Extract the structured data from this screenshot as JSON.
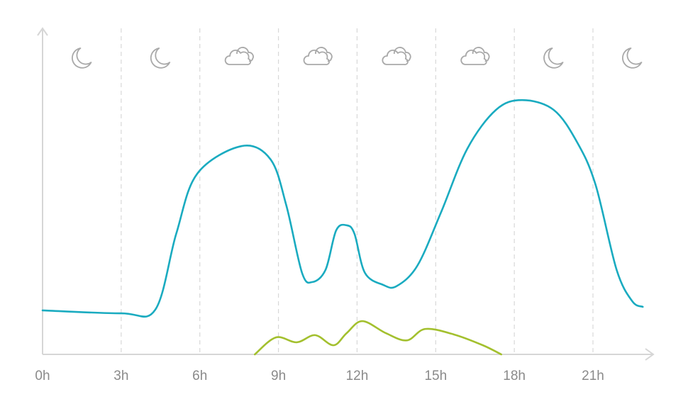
{
  "chart_data": {
    "type": "line",
    "xlim": [
      0,
      23.3
    ],
    "ylim": [
      0,
      100
    ],
    "xticks": [
      {
        "value": 0,
        "label": "0h"
      },
      {
        "value": 3,
        "label": "3h"
      },
      {
        "value": 6,
        "label": "6h"
      },
      {
        "value": 9,
        "label": "9h"
      },
      {
        "value": 12,
        "label": "12h"
      },
      {
        "value": 15,
        "label": "15h"
      },
      {
        "value": 18,
        "label": "18h"
      },
      {
        "value": 21,
        "label": "21h"
      }
    ],
    "grid": true,
    "series": [
      {
        "color": "#1aabc0",
        "x": [
          0,
          3,
          4.3,
          5.1,
          5.9,
          7.6,
          8.7,
          9.3,
          9.9,
          10.3,
          10.8,
          11.2,
          11.6,
          11.9,
          12.3,
          13,
          13.5,
          14.3,
          15.2,
          16.2,
          17.3,
          18.3,
          19.5,
          20.4,
          21.1,
          21.9,
          22.5,
          22.9
        ],
        "values": [
          13.5,
          12.6,
          13.7,
          37,
          55.4,
          63.9,
          59.8,
          45.7,
          25,
          22.2,
          26,
          38,
          39.6,
          37,
          25,
          21.3,
          20.9,
          27.2,
          43.5,
          63,
          75,
          78,
          75,
          65,
          52,
          26,
          16.3,
          14.6
        ]
      },
      {
        "color": "#a3c02e",
        "x": [
          8.1,
          8.9,
          9.7,
          10.4,
          11.1,
          11.6,
          12.2,
          13.1,
          13.9,
          14.6,
          15.7,
          16.8,
          17.5
        ],
        "values": [
          0,
          5.2,
          3.7,
          5.9,
          2.8,
          6.5,
          10.2,
          6.5,
          4.3,
          7.8,
          6.1,
          2.8,
          0
        ]
      }
    ]
  }
}
